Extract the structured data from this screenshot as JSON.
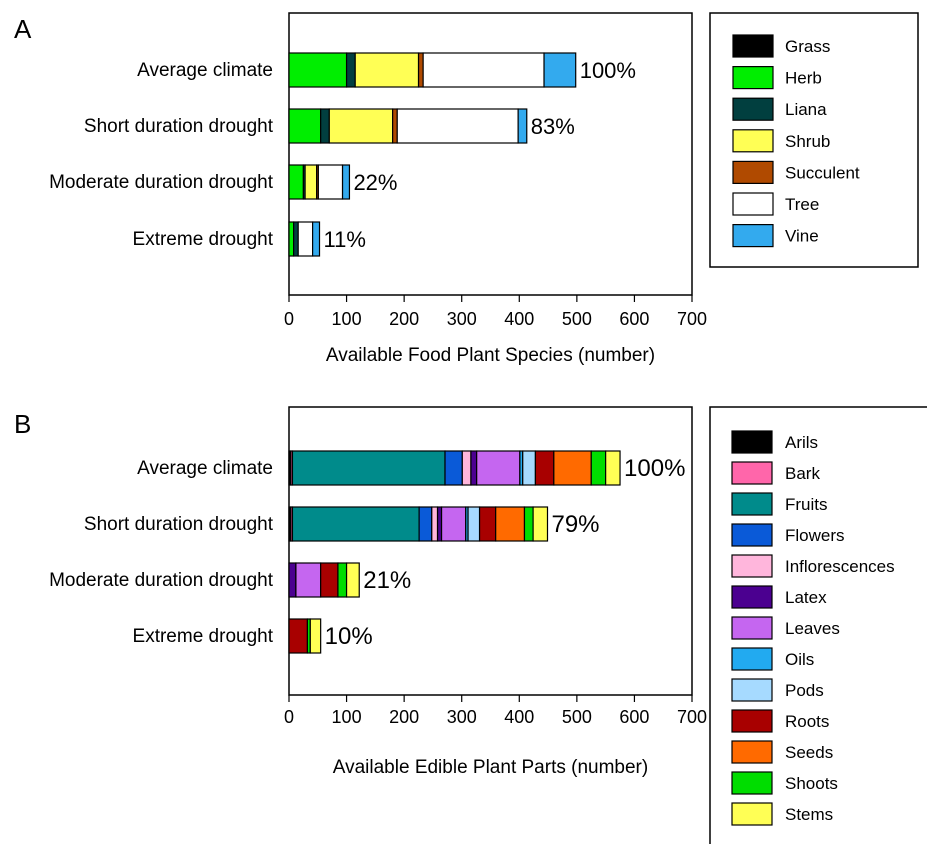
{
  "chart_data": [
    {
      "panel": "A",
      "type": "bar",
      "orientation": "horizontal",
      "stacked": true,
      "title": "",
      "xlabel": "Available Food Plant Species (number)",
      "ylabel": "",
      "xlim": [
        0,
        700
      ],
      "xticks": [
        0,
        100,
        200,
        300,
        400,
        500,
        600,
        700
      ],
      "grid": false,
      "legend_position": "right",
      "categories": [
        "Average climate",
        "Short duration drought",
        "Moderate duration drought",
        "Extreme drought"
      ],
      "percent_labels": [
        "100%",
        "83%",
        "22%",
        "11%"
      ],
      "series": [
        {
          "name": "Grass",
          "color": "#000000",
          "values": [
            0,
            0,
            0,
            0
          ]
        },
        {
          "name": "Herb",
          "color": "#00ee00",
          "values": [
            100,
            55,
            25,
            8
          ]
        },
        {
          "name": "Liana",
          "color": "#013f3f",
          "values": [
            15,
            15,
            3,
            8
          ]
        },
        {
          "name": "Shrub",
          "color": "#ffff55",
          "values": [
            110,
            110,
            20,
            0
          ]
        },
        {
          "name": "Succulent",
          "color": "#b04a00",
          "values": [
            8,
            8,
            3,
            0
          ]
        },
        {
          "name": "Tree",
          "color": "#ffffff",
          "values": [
            210,
            210,
            42,
            25
          ]
        },
        {
          "name": "Vine",
          "color": "#33aaee",
          "values": [
            55,
            15,
            12,
            12
          ]
        }
      ]
    },
    {
      "panel": "B",
      "type": "bar",
      "orientation": "horizontal",
      "stacked": true,
      "title": "",
      "xlabel": "Available Edible Plant Parts (number)",
      "ylabel": "",
      "xlim": [
        0,
        700
      ],
      "xticks": [
        0,
        100,
        200,
        300,
        400,
        500,
        600,
        700
      ],
      "grid": false,
      "legend_position": "right",
      "categories": [
        "Average climate",
        "Short duration drought",
        "Moderate duration drought",
        "Extreme drought"
      ],
      "percent_labels": [
        "100%",
        "79%",
        "21%",
        "10%"
      ],
      "series": [
        {
          "name": "Arils",
          "color": "#000000",
          "values": [
            3,
            3,
            0,
            0
          ]
        },
        {
          "name": "Bark",
          "color": "#ff66aa",
          "values": [
            3,
            3,
            0,
            0
          ]
        },
        {
          "name": "Fruits",
          "color": "#008b8b",
          "values": [
            265,
            220,
            0,
            0
          ]
        },
        {
          "name": "Flowers",
          "color": "#0a5ad8",
          "values": [
            30,
            22,
            0,
            0
          ]
        },
        {
          "name": "Inflorescences",
          "color": "#ffb6dc",
          "values": [
            15,
            10,
            0,
            0
          ]
        },
        {
          "name": "Latex",
          "color": "#4b0090",
          "values": [
            10,
            7,
            12,
            0
          ]
        },
        {
          "name": "Leaves",
          "color": "#c566f0",
          "values": [
            75,
            42,
            43,
            0
          ]
        },
        {
          "name": "Oils",
          "color": "#22aaf0",
          "values": [
            5,
            4,
            0,
            0
          ]
        },
        {
          "name": "Pods",
          "color": "#a6daff",
          "values": [
            22,
            20,
            0,
            0
          ]
        },
        {
          "name": "Roots",
          "color": "#a80000",
          "values": [
            32,
            28,
            30,
            32
          ]
        },
        {
          "name": "Seeds",
          "color": "#ff6a00",
          "values": [
            65,
            50,
            0,
            0
          ]
        },
        {
          "name": "Shoots",
          "color": "#00dd00",
          "values": [
            25,
            15,
            15,
            5
          ]
        },
        {
          "name": "Stems",
          "color": "#ffff55",
          "values": [
            25,
            25,
            22,
            18
          ]
        }
      ]
    }
  ]
}
